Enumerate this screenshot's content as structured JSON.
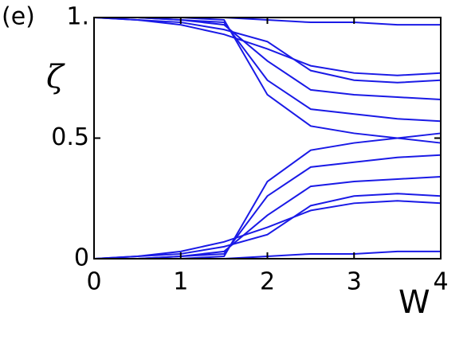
{
  "chart_data": {
    "type": "line",
    "label": "(e)",
    "xlabel": "W",
    "ylabel": "ζ",
    "color": "#1a1ae6",
    "x": [
      0,
      0.5,
      1,
      1.5,
      2,
      2.5,
      3,
      3.5,
      4
    ],
    "xlim": [
      0,
      4
    ],
    "xticks": [
      0,
      1,
      2,
      3,
      4
    ],
    "ylim": [
      0,
      1
    ],
    "yticks": [
      0,
      0.5,
      {
        "value": 1,
        "label": "1."
      }
    ],
    "grid": false,
    "series": [
      {
        "values": [
          1,
          0.99,
          0.97,
          0.93,
          0.87,
          0.8,
          0.77,
          0.76,
          0.77
        ]
      },
      {
        "values": [
          1,
          0.99,
          0.98,
          0.95,
          0.9,
          0.78,
          0.74,
          0.73,
          0.74
        ]
      },
      {
        "values": [
          1,
          1,
          0.99,
          0.97,
          0.82,
          0.7,
          0.68,
          0.67,
          0.66
        ]
      },
      {
        "values": [
          1,
          1,
          0.99,
          0.98,
          0.74,
          0.62,
          0.6,
          0.58,
          0.57
        ]
      },
      {
        "values": [
          1,
          1,
          1,
          0.99,
          0.68,
          0.55,
          0.52,
          0.5,
          0.48
        ]
      },
      {
        "values": [
          1,
          1,
          1,
          1,
          0.99,
          0.98,
          0.98,
          0.97,
          0.97
        ]
      },
      {
        "values": [
          0,
          0.01,
          0.03,
          0.07,
          0.13,
          0.2,
          0.23,
          0.24,
          0.23
        ]
      },
      {
        "values": [
          0,
          0.01,
          0.02,
          0.05,
          0.1,
          0.22,
          0.26,
          0.27,
          0.26
        ]
      },
      {
        "values": [
          0,
          0,
          0.01,
          0.03,
          0.18,
          0.3,
          0.32,
          0.33,
          0.34
        ]
      },
      {
        "values": [
          0,
          0,
          0.01,
          0.02,
          0.26,
          0.38,
          0.4,
          0.42,
          0.43
        ]
      },
      {
        "values": [
          0,
          0,
          0,
          0.01,
          0.32,
          0.45,
          0.48,
          0.5,
          0.52
        ]
      },
      {
        "values": [
          0,
          0,
          0,
          0,
          0.01,
          0.02,
          0.02,
          0.03,
          0.03
        ]
      }
    ]
  }
}
